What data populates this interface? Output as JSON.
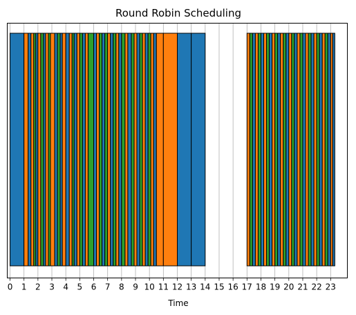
{
  "chart_data": {
    "type": "bar",
    "orientation": "gantt",
    "title": "Round Robin Scheduling",
    "xlabel": "Time",
    "ylabel": "",
    "xlim": [
      -0.2,
      24.2
    ],
    "xticks": [
      "0",
      "1",
      "2",
      "3",
      "4",
      "5",
      "6",
      "7",
      "8",
      "9",
      "10",
      "11",
      "12",
      "13",
      "14",
      "15",
      "16",
      "17",
      "18",
      "19",
      "20",
      "21",
      "22",
      "23"
    ],
    "grid": "x",
    "colors": {
      "blue": "#1f77b4",
      "orange": "#ff7f0e",
      "green": "#2ca02c",
      "black": "#000000"
    },
    "segments": [
      {
        "start": 0.0,
        "end": 1.0,
        "color": "blue"
      },
      {
        "start": 1.0,
        "end": 1.3,
        "color": "orange"
      },
      {
        "start": 1.3,
        "end": 1.5,
        "color": "blue"
      },
      {
        "start": 1.5,
        "end": 1.7,
        "color": "orange"
      },
      {
        "start": 1.7,
        "end": 1.85,
        "color": "green"
      },
      {
        "start": 1.85,
        "end": 2.0,
        "color": "blue"
      },
      {
        "start": 2.0,
        "end": 2.2,
        "color": "orange"
      },
      {
        "start": 2.2,
        "end": 2.4,
        "color": "green"
      },
      {
        "start": 2.4,
        "end": 2.55,
        "color": "blue"
      },
      {
        "start": 2.55,
        "end": 2.75,
        "color": "orange"
      },
      {
        "start": 2.75,
        "end": 2.9,
        "color": "green"
      },
      {
        "start": 2.9,
        "end": 3.2,
        "color": "orange"
      },
      {
        "start": 3.2,
        "end": 3.4,
        "color": "blue"
      },
      {
        "start": 3.4,
        "end": 3.6,
        "color": "green"
      },
      {
        "start": 3.6,
        "end": 3.75,
        "color": "blue"
      },
      {
        "start": 3.75,
        "end": 4.0,
        "color": "orange"
      },
      {
        "start": 4.0,
        "end": 4.25,
        "color": "blue"
      },
      {
        "start": 4.25,
        "end": 4.45,
        "color": "orange"
      },
      {
        "start": 4.45,
        "end": 4.6,
        "color": "green"
      },
      {
        "start": 4.6,
        "end": 4.8,
        "color": "blue"
      },
      {
        "start": 4.8,
        "end": 5.0,
        "color": "orange"
      },
      {
        "start": 5.0,
        "end": 5.2,
        "color": "green"
      },
      {
        "start": 5.2,
        "end": 5.4,
        "color": "blue"
      },
      {
        "start": 5.4,
        "end": 5.6,
        "color": "orange"
      },
      {
        "start": 5.6,
        "end": 6.0,
        "color": "green"
      },
      {
        "start": 6.0,
        "end": 6.2,
        "color": "blue"
      },
      {
        "start": 6.2,
        "end": 6.4,
        "color": "orange"
      },
      {
        "start": 6.4,
        "end": 6.6,
        "color": "green"
      },
      {
        "start": 6.6,
        "end": 6.8,
        "color": "blue"
      },
      {
        "start": 6.8,
        "end": 7.0,
        "color": "green"
      },
      {
        "start": 7.0,
        "end": 7.2,
        "color": "orange"
      },
      {
        "start": 7.2,
        "end": 7.4,
        "color": "blue"
      },
      {
        "start": 7.4,
        "end": 7.6,
        "color": "green"
      },
      {
        "start": 7.6,
        "end": 7.8,
        "color": "orange"
      },
      {
        "start": 7.8,
        "end": 8.0,
        "color": "blue"
      },
      {
        "start": 8.0,
        "end": 8.25,
        "color": "green"
      },
      {
        "start": 8.25,
        "end": 8.45,
        "color": "orange"
      },
      {
        "start": 8.45,
        "end": 8.7,
        "color": "blue"
      },
      {
        "start": 8.7,
        "end": 8.9,
        "color": "green"
      },
      {
        "start": 8.9,
        "end": 9.1,
        "color": "orange"
      },
      {
        "start": 9.1,
        "end": 9.3,
        "color": "blue"
      },
      {
        "start": 9.3,
        "end": 9.5,
        "color": "green"
      },
      {
        "start": 9.5,
        "end": 9.7,
        "color": "orange"
      },
      {
        "start": 9.7,
        "end": 9.9,
        "color": "blue"
      },
      {
        "start": 9.9,
        "end": 10.1,
        "color": "green"
      },
      {
        "start": 10.1,
        "end": 10.3,
        "color": "orange"
      },
      {
        "start": 10.3,
        "end": 10.5,
        "color": "blue"
      },
      {
        "start": 10.5,
        "end": 11.0,
        "color": "orange"
      },
      {
        "start": 11.0,
        "end": 12.0,
        "color": "orange"
      },
      {
        "start": 12.0,
        "end": 13.0,
        "color": "blue"
      },
      {
        "start": 13.0,
        "end": 14.0,
        "color": "blue"
      },
      {
        "start": 17.0,
        "end": 17.2,
        "color": "orange"
      },
      {
        "start": 17.2,
        "end": 17.4,
        "color": "green"
      },
      {
        "start": 17.4,
        "end": 17.6,
        "color": "blue"
      },
      {
        "start": 17.6,
        "end": 17.8,
        "color": "orange"
      },
      {
        "start": 17.8,
        "end": 18.0,
        "color": "green"
      },
      {
        "start": 18.0,
        "end": 18.2,
        "color": "blue"
      },
      {
        "start": 18.2,
        "end": 18.4,
        "color": "orange"
      },
      {
        "start": 18.4,
        "end": 18.6,
        "color": "green"
      },
      {
        "start": 18.6,
        "end": 18.8,
        "color": "blue"
      },
      {
        "start": 18.8,
        "end": 19.0,
        "color": "orange"
      },
      {
        "start": 19.0,
        "end": 19.2,
        "color": "green"
      },
      {
        "start": 19.2,
        "end": 19.4,
        "color": "blue"
      },
      {
        "start": 19.4,
        "end": 19.6,
        "color": "orange"
      },
      {
        "start": 19.6,
        "end": 19.8,
        "color": "green"
      },
      {
        "start": 19.8,
        "end": 20.0,
        "color": "blue"
      },
      {
        "start": 20.0,
        "end": 20.2,
        "color": "orange"
      },
      {
        "start": 20.2,
        "end": 20.4,
        "color": "green"
      },
      {
        "start": 20.4,
        "end": 20.6,
        "color": "blue"
      },
      {
        "start": 20.6,
        "end": 20.8,
        "color": "orange"
      },
      {
        "start": 20.8,
        "end": 21.0,
        "color": "green"
      },
      {
        "start": 21.0,
        "end": 21.2,
        "color": "blue"
      },
      {
        "start": 21.2,
        "end": 21.4,
        "color": "orange"
      },
      {
        "start": 21.4,
        "end": 21.6,
        "color": "green"
      },
      {
        "start": 21.6,
        "end": 21.8,
        "color": "blue"
      },
      {
        "start": 21.8,
        "end": 22.0,
        "color": "orange"
      },
      {
        "start": 22.0,
        "end": 22.2,
        "color": "green"
      },
      {
        "start": 22.2,
        "end": 22.4,
        "color": "blue"
      },
      {
        "start": 22.4,
        "end": 22.6,
        "color": "orange"
      },
      {
        "start": 22.6,
        "end": 22.8,
        "color": "green"
      },
      {
        "start": 22.8,
        "end": 23.0,
        "color": "blue"
      },
      {
        "start": 23.0,
        "end": 23.15,
        "color": "orange"
      },
      {
        "start": 23.15,
        "end": 23.3,
        "color": "blue"
      }
    ]
  }
}
